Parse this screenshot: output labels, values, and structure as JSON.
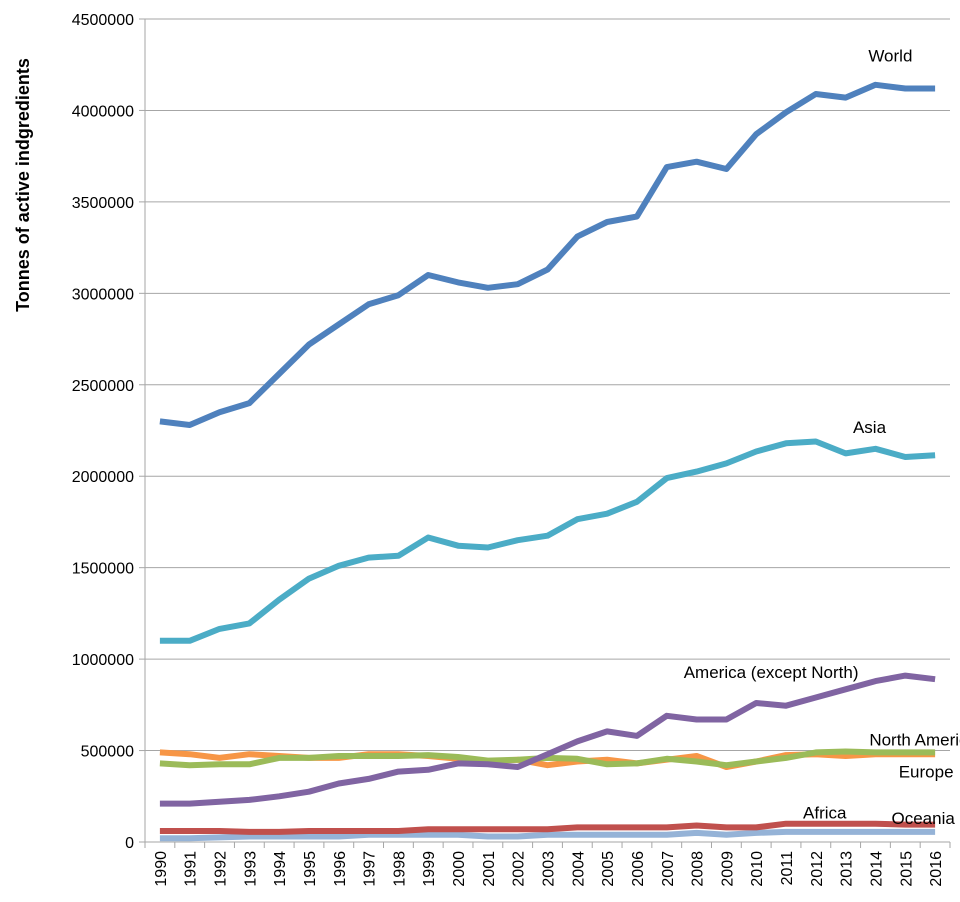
{
  "chart_data": {
    "type": "line",
    "title": "",
    "xlabel": "",
    "ylabel": "Tonnes of active indgredients",
    "ylim": [
      0,
      4500000
    ],
    "yticks": [
      0,
      500000,
      1000000,
      1500000,
      2000000,
      2500000,
      3000000,
      3500000,
      4000000,
      4500000
    ],
    "ytick_labels": [
      "0",
      "500000",
      "1000000",
      "1500000",
      "2000000",
      "2500000",
      "3000000",
      "3500000",
      "4000000",
      "4500000"
    ],
    "grid": "horizontal",
    "legend": "none (series labeled inline)",
    "categories": [
      "1990",
      "1991",
      "1992",
      "1993",
      "1994",
      "1995",
      "1996",
      "1997",
      "1998",
      "1999",
      "2000",
      "2001",
      "2002",
      "2003",
      "2004",
      "2005",
      "2006",
      "2007",
      "2008",
      "2009",
      "2010",
      "2011",
      "2012",
      "2013",
      "2014",
      "2015",
      "2016"
    ],
    "series": [
      {
        "name": "World",
        "color": "#4F81BD",
        "values": [
          2300000,
          2280000,
          2350000,
          2400000,
          2560000,
          2720000,
          2830000,
          2940000,
          2990000,
          3100000,
          3060000,
          3030000,
          3050000,
          3130000,
          3310000,
          3390000,
          3420000,
          3690000,
          3720000,
          3680000,
          3870000,
          3990000,
          4090000,
          4070000,
          4140000,
          4120000,
          4120000
        ]
      },
      {
        "name": "Asia",
        "color": "#4BACC6",
        "values": [
          1100000,
          1100000,
          1165000,
          1195000,
          1325000,
          1440000,
          1510000,
          1555000,
          1565000,
          1665000,
          1620000,
          1610000,
          1650000,
          1675000,
          1765000,
          1795000,
          1860000,
          1990000,
          2025000,
          2070000,
          2135000,
          2180000,
          2190000,
          2125000,
          2150000,
          2105000,
          2115000
        ]
      },
      {
        "name": "America (except North)",
        "color": "#8064A2",
        "values": [
          210000,
          210000,
          220000,
          230000,
          250000,
          275000,
          320000,
          345000,
          385000,
          395000,
          430000,
          425000,
          410000,
          480000,
          550000,
          605000,
          580000,
          690000,
          670000,
          670000,
          760000,
          745000,
          790000,
          835000,
          880000,
          910000,
          890000
        ]
      },
      {
        "name": "North America",
        "color": "#9BBB59",
        "values": [
          430000,
          420000,
          425000,
          425000,
          460000,
          460000,
          470000,
          470000,
          470000,
          475000,
          465000,
          445000,
          450000,
          460000,
          455000,
          425000,
          430000,
          455000,
          440000,
          420000,
          440000,
          460000,
          490000,
          495000,
          490000,
          490000,
          490000
        ]
      },
      {
        "name": "Europe",
        "color": "#F79646",
        "values": [
          490000,
          480000,
          460000,
          480000,
          470000,
          460000,
          460000,
          480000,
          480000,
          470000,
          455000,
          440000,
          450000,
          420000,
          440000,
          450000,
          430000,
          450000,
          470000,
          410000,
          440000,
          475000,
          480000,
          470000,
          480000,
          480000,
          480000
        ]
      },
      {
        "name": "Africa",
        "color": "#C0504D",
        "values": [
          60000,
          60000,
          60000,
          55000,
          55000,
          60000,
          60000,
          60000,
          60000,
          70000,
          70000,
          70000,
          70000,
          70000,
          80000,
          80000,
          80000,
          80000,
          90000,
          80000,
          80000,
          100000,
          100000,
          100000,
          100000,
          95000,
          95000
        ]
      },
      {
        "name": "Oceania",
        "color": "#95B3D7",
        "values": [
          20000,
          20000,
          25000,
          30000,
          30000,
          30000,
          30000,
          40000,
          40000,
          40000,
          40000,
          30000,
          30000,
          40000,
          40000,
          40000,
          40000,
          40000,
          50000,
          40000,
          50000,
          55000,
          55000,
          55000,
          55000,
          55000,
          55000
        ]
      }
    ]
  }
}
